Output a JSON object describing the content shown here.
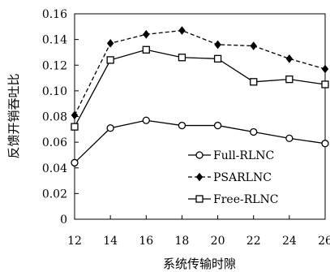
{
  "chart_data": {
    "type": "line",
    "title": "",
    "xlabel": "系统传输时隙",
    "ylabel": "反馈开销吞吐比",
    "x": [
      12,
      14,
      16,
      18,
      20,
      22,
      24,
      26
    ],
    "xlim": [
      12,
      26
    ],
    "ylim": [
      0,
      0.16
    ],
    "xticks": [
      "12",
      "14",
      "16",
      "18",
      "20",
      "22",
      "24",
      "26"
    ],
    "yticks": [
      "0",
      "0.02",
      "0.04",
      "0.06",
      "0.08",
      "0.10",
      "0.12",
      "0.14",
      "0.16"
    ],
    "grid": false,
    "legend_position": "bottom-right",
    "series": [
      {
        "name": "Full-RLNC",
        "values": [
          0.044,
          0.071,
          0.077,
          0.073,
          0.073,
          0.068,
          0.063,
          0.059
        ],
        "marker": "circle-open",
        "line_style": "solid",
        "color": "#000000"
      },
      {
        "name": "PSARLNC",
        "values": [
          0.081,
          0.137,
          0.144,
          0.147,
          0.136,
          0.135,
          0.125,
          0.117
        ],
        "marker": "diamond-filled",
        "line_style": "dashed",
        "color": "#000000"
      },
      {
        "name": "Free-RLNC",
        "values": [
          0.072,
          0.124,
          0.132,
          0.126,
          0.125,
          0.107,
          0.109,
          0.105
        ],
        "marker": "square-open",
        "line_style": "solid",
        "color": "#000000"
      }
    ]
  }
}
